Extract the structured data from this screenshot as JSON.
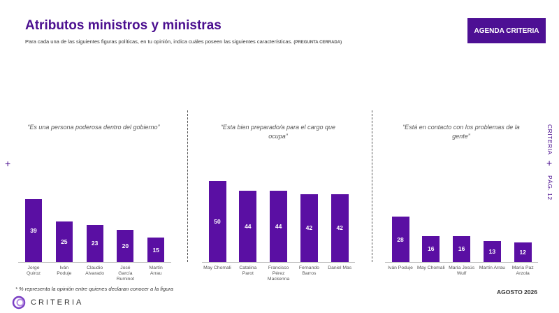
{
  "header": {
    "title": "Atributos ministros y ministras",
    "subtitle": "Para cada una de las siguientes figuras políticas, en tu opinión, indica cuáles poseen las siguientes características.",
    "subtitle_note": "(PREGUNTA CERRADA)",
    "badge": "AGENDA CRITERIA"
  },
  "chart_data": [
    {
      "type": "bar",
      "title": "“Es una persona poderosa dentro del gobierno”",
      "categories": [
        "Jorge Quiroz",
        "Iván Poduje",
        "Claudio Alvarado",
        "José García Ruminot",
        "Martín Arrau"
      ],
      "values": [
        39,
        25,
        23,
        20,
        15
      ],
      "color": "#5a0fa3"
    },
    {
      "type": "bar",
      "title": "“Esta bien preparado/a para el cargo que ocupa”",
      "categories": [
        "May Chomali",
        "Catalina Parot",
        "Francisco Pérez Mackenna",
        "Fernando Barros",
        "Daniel Mas"
      ],
      "values": [
        50,
        44,
        44,
        42,
        42
      ],
      "color": "#5a0fa3"
    },
    {
      "type": "bar",
      "title": "“Está en contacto con los problemas de la gente”",
      "categories": [
        "Iván Poduje",
        "May Chomali",
        "María Jesús Wulf",
        "Martín Arrau",
        "María Paz Arzola"
      ],
      "values": [
        28,
        16,
        16,
        13,
        12
      ],
      "color": "#5a0fa3"
    }
  ],
  "side": {
    "brand": "CRITERIA",
    "page": "PÁG. 12"
  },
  "footer": {
    "note": "* % representa la opinión entre quienes declaran conocer a la figura",
    "logo": "CRITERIA",
    "date": "AGOSTO 2026"
  }
}
